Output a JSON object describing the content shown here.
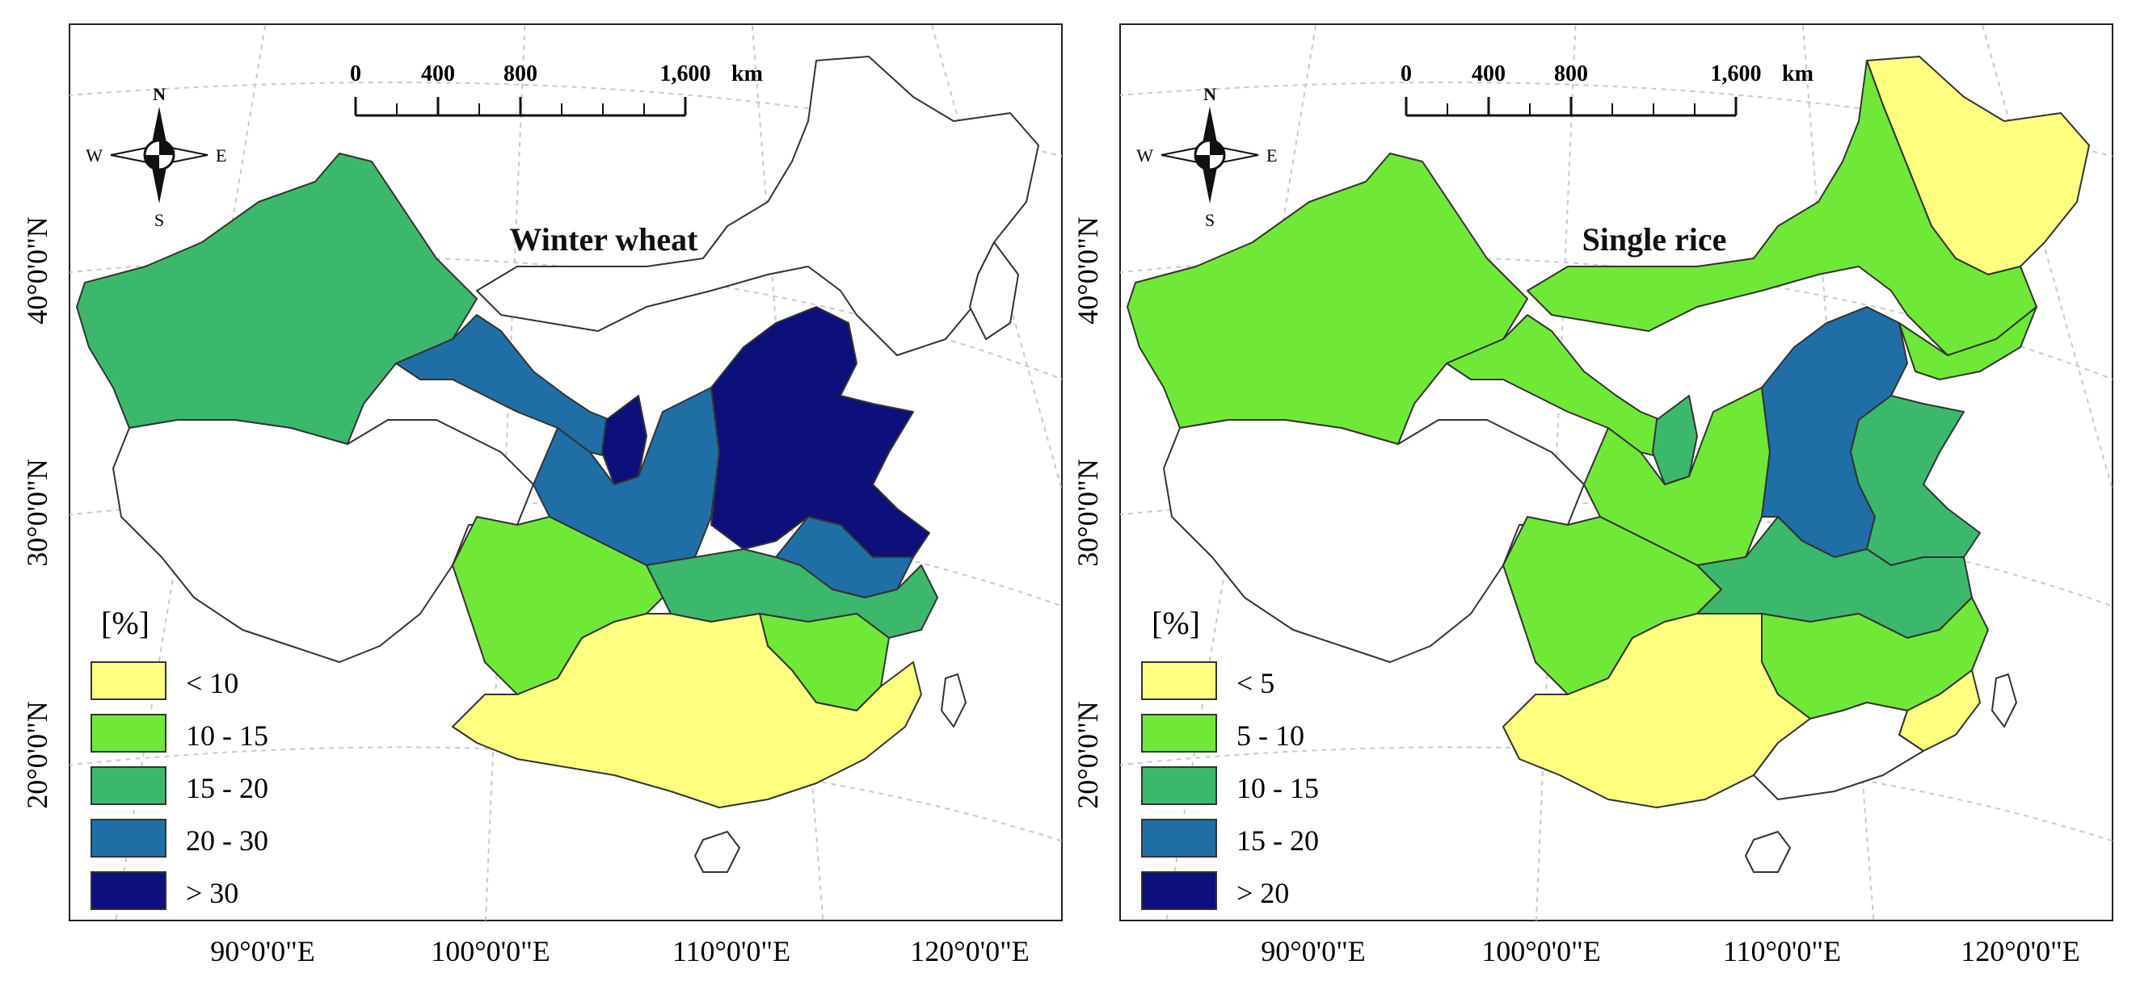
{
  "colors": {
    "frame": "#222222",
    "grid": "#c8c8c8",
    "border": "#333333",
    "land_none": "#ffffff"
  },
  "axes": {
    "x_ticks": [
      "90°0'0\"E",
      "100°0'0\"E",
      "110°0'0\"E",
      "120°0'0\"E"
    ],
    "y_ticks": [
      "20°0'0\"N",
      "30°0'0\"N",
      "40°0'0\"N"
    ]
  },
  "scale_bar": {
    "labels": [
      "0",
      "400",
      "800",
      "1,600"
    ],
    "unit": "km"
  },
  "compass": {
    "n": "N",
    "s": "S",
    "e": "E",
    "w": "W"
  },
  "maps": [
    {
      "title": "Winter wheat",
      "legend_title": "[%]",
      "legend": [
        {
          "label": "< 10",
          "color": "#ffff80"
        },
        {
          "label": "10 - 15",
          "color": "#70e838"
        },
        {
          "label": "15 - 20",
          "color": "#3cb86c"
        },
        {
          "label": "20 - 30",
          "color": "#1f6ea6"
        },
        {
          "label": "> 30",
          "color": "#0d0f7a"
        }
      ]
    },
    {
      "title": "Single rice",
      "legend_title": "[%]",
      "legend": [
        {
          "label": "< 5",
          "color": "#ffff80"
        },
        {
          "label": "5 - 10",
          "color": "#70e838"
        },
        {
          "label": "10 - 15",
          "color": "#3cb86c"
        },
        {
          "label": "15 - 20",
          "color": "#1f6ea6"
        },
        {
          "label": "> 20",
          "color": "#0d0f7a"
        }
      ]
    }
  ]
}
